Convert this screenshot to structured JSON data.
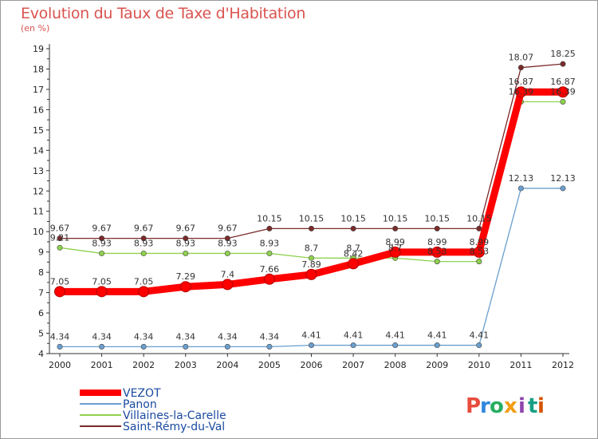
{
  "title": "Evolution du Taux de Taxe d'Habitation",
  "subtitle": "(en %)",
  "logo": {
    "letters": [
      "P",
      "r",
      "o",
      "x",
      "i",
      "t",
      "i"
    ],
    "colors": [
      "#e74c3c",
      "#2e86de",
      "#27ae60",
      "#f39c12",
      "#8e44ad",
      "#16a085",
      "#d35400"
    ]
  },
  "chart_data": {
    "type": "line",
    "x": [
      "2000",
      "2001",
      "2002",
      "2003",
      "2004",
      "2005",
      "2006",
      "2007",
      "2008",
      "2009",
      "2010",
      "2011",
      "2012"
    ],
    "ylim": [
      4,
      19
    ],
    "yticks": [
      4,
      5,
      6,
      7,
      8,
      9,
      10,
      11,
      12,
      13,
      14,
      15,
      16,
      17,
      18,
      19
    ],
    "grid": false,
    "legend_position": "bottom-left",
    "series": [
      {
        "name": "VEZOT",
        "color": "#ff0000",
        "values": [
          7.05,
          7.05,
          7.05,
          7.29,
          7.4,
          7.66,
          7.89,
          8.42,
          8.99,
          8.99,
          8.99,
          16.87,
          16.87
        ],
        "labels": [
          "7.05",
          "7.05",
          "7.05",
          "7.29",
          "7.4",
          "7.66",
          "7.89",
          "8.42",
          "8.99",
          "8.99",
          "8.99",
          "16.87",
          "16.87"
        ]
      },
      {
        "name": "Panon",
        "color": "#6a9fcf",
        "values": [
          4.34,
          4.34,
          4.34,
          4.34,
          4.34,
          4.34,
          4.41,
          4.41,
          4.41,
          4.41,
          4.41,
          12.13,
          12.13
        ],
        "labels": [
          "4.34",
          "4.34",
          "4.34",
          "4.34",
          "4.34",
          "4.34",
          "4.41",
          "4.41",
          "4.41",
          "4.41",
          "4.41",
          "12.13",
          "12.13"
        ]
      },
      {
        "name": "Villaines-la-Carelle",
        "color": "#8fd14f",
        "values": [
          9.21,
          8.93,
          8.93,
          8.93,
          8.93,
          8.93,
          8.7,
          8.7,
          8.7,
          8.53,
          8.53,
          16.39,
          16.39
        ],
        "labels": [
          "9.21",
          "8.93",
          "8.93",
          "8.93",
          "8.93",
          "8.93",
          "8.7",
          "8.7",
          "8.7",
          "8.53",
          "8.53",
          "16.39",
          "16.39"
        ]
      },
      {
        "name": "Saint-Rémy-du-Val",
        "color": "#7b2a2a",
        "values": [
          9.67,
          9.67,
          9.67,
          9.67,
          9.67,
          10.15,
          10.15,
          10.15,
          10.15,
          10.15,
          10.15,
          18.07,
          18.25
        ],
        "labels": [
          "9.67",
          "9.67",
          "9.67",
          "9.67",
          "9.67",
          "10.15",
          "10.15",
          "10.15",
          "10.15",
          "10.15",
          "10.15",
          "18.07",
          "18.25"
        ]
      }
    ]
  }
}
